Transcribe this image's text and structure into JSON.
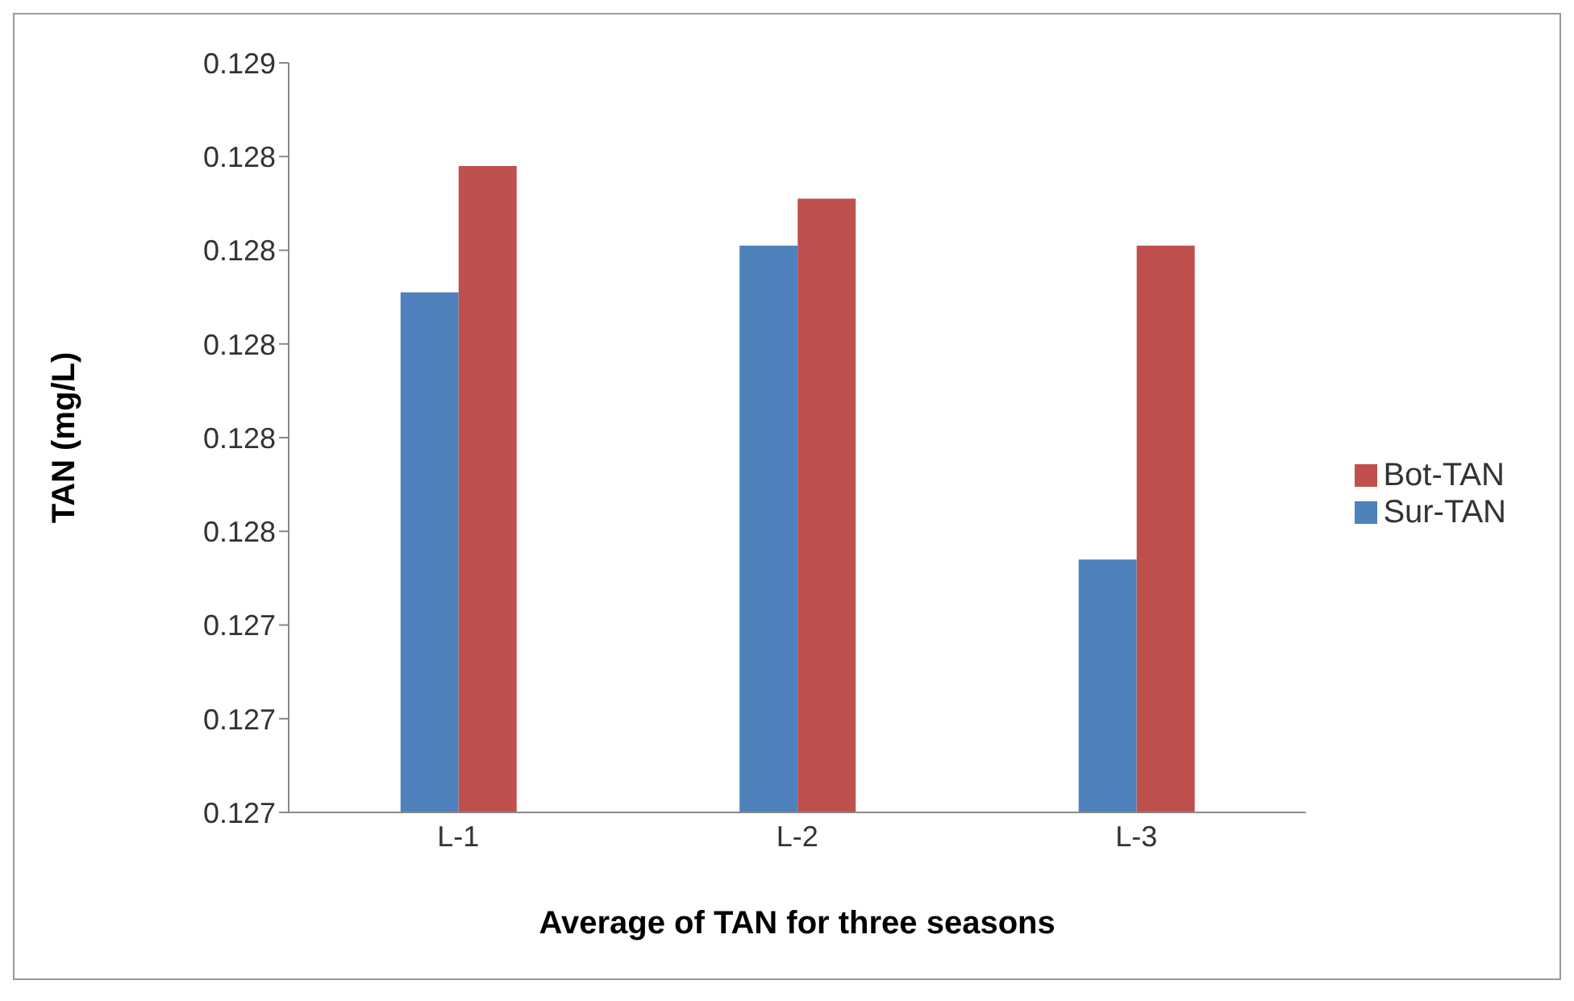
{
  "chart_data": {
    "type": "bar",
    "xlabel": "Average of TAN for three seasons",
    "ylabel": "TAN (mg/L)",
    "categories": [
      "L-1",
      "L-2",
      "L-3"
    ],
    "series": [
      {
        "name": "Sur-TAN",
        "color": "#4f81bd",
        "values": [
          0.12801,
          0.12811,
          0.12744
        ]
      },
      {
        "name": "Bot-TAN",
        "color": "#c0504d",
        "values": [
          0.12828,
          0.12821,
          0.12811
        ]
      }
    ],
    "ylim": [
      0.1269,
      0.1285
    ],
    "yticks": [
      {
        "value": 0.1269,
        "label": "0.127"
      },
      {
        "value": 0.1271,
        "label": "0.127"
      },
      {
        "value": 0.1273,
        "label": "0.127"
      },
      {
        "value": 0.1275,
        "label": "0.128"
      },
      {
        "value": 0.1277,
        "label": "0.128"
      },
      {
        "value": 0.1279,
        "label": "0.128"
      },
      {
        "value": 0.1281,
        "label": "0.128"
      },
      {
        "value": 0.1283,
        "label": "0.128"
      },
      {
        "value": 0.1285,
        "label": "0.129"
      }
    ],
    "grid": false,
    "legend": "right"
  }
}
